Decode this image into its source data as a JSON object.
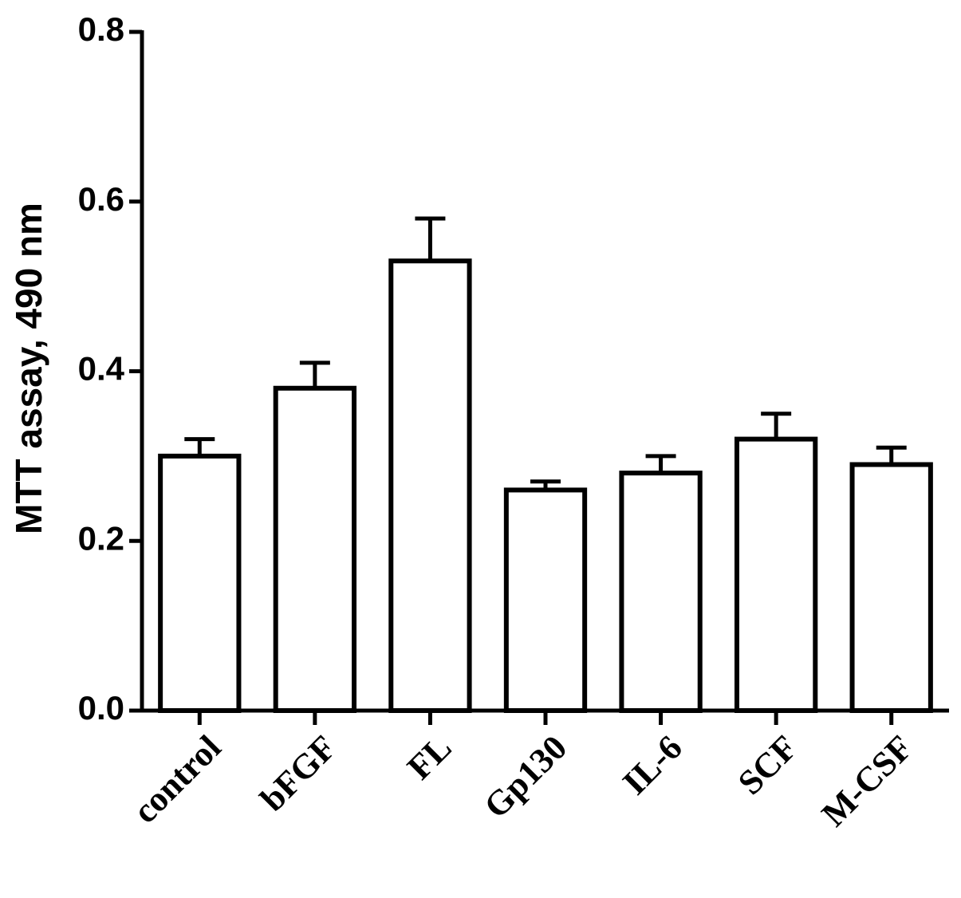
{
  "chart_data": {
    "type": "bar",
    "y_label": "MTT assay, 490 nm",
    "categories": [
      "control",
      "bFGF",
      "FL",
      "Gp130",
      "IL-6",
      "SCF",
      "M-CSF"
    ],
    "values": [
      0.3,
      0.38,
      0.53,
      0.26,
      0.28,
      0.32,
      0.29
    ],
    "errors": [
      0.02,
      0.03,
      0.05,
      0.01,
      0.02,
      0.03,
      0.02
    ],
    "color": "#ffffff",
    "edge_color": "#000000",
    "ylim": [
      0,
      0.8
    ],
    "yticks": [
      {
        "value": 0,
        "label": "0.0"
      },
      0.2,
      0.4,
      0.6,
      0.8
    ],
    "grid": false
  }
}
